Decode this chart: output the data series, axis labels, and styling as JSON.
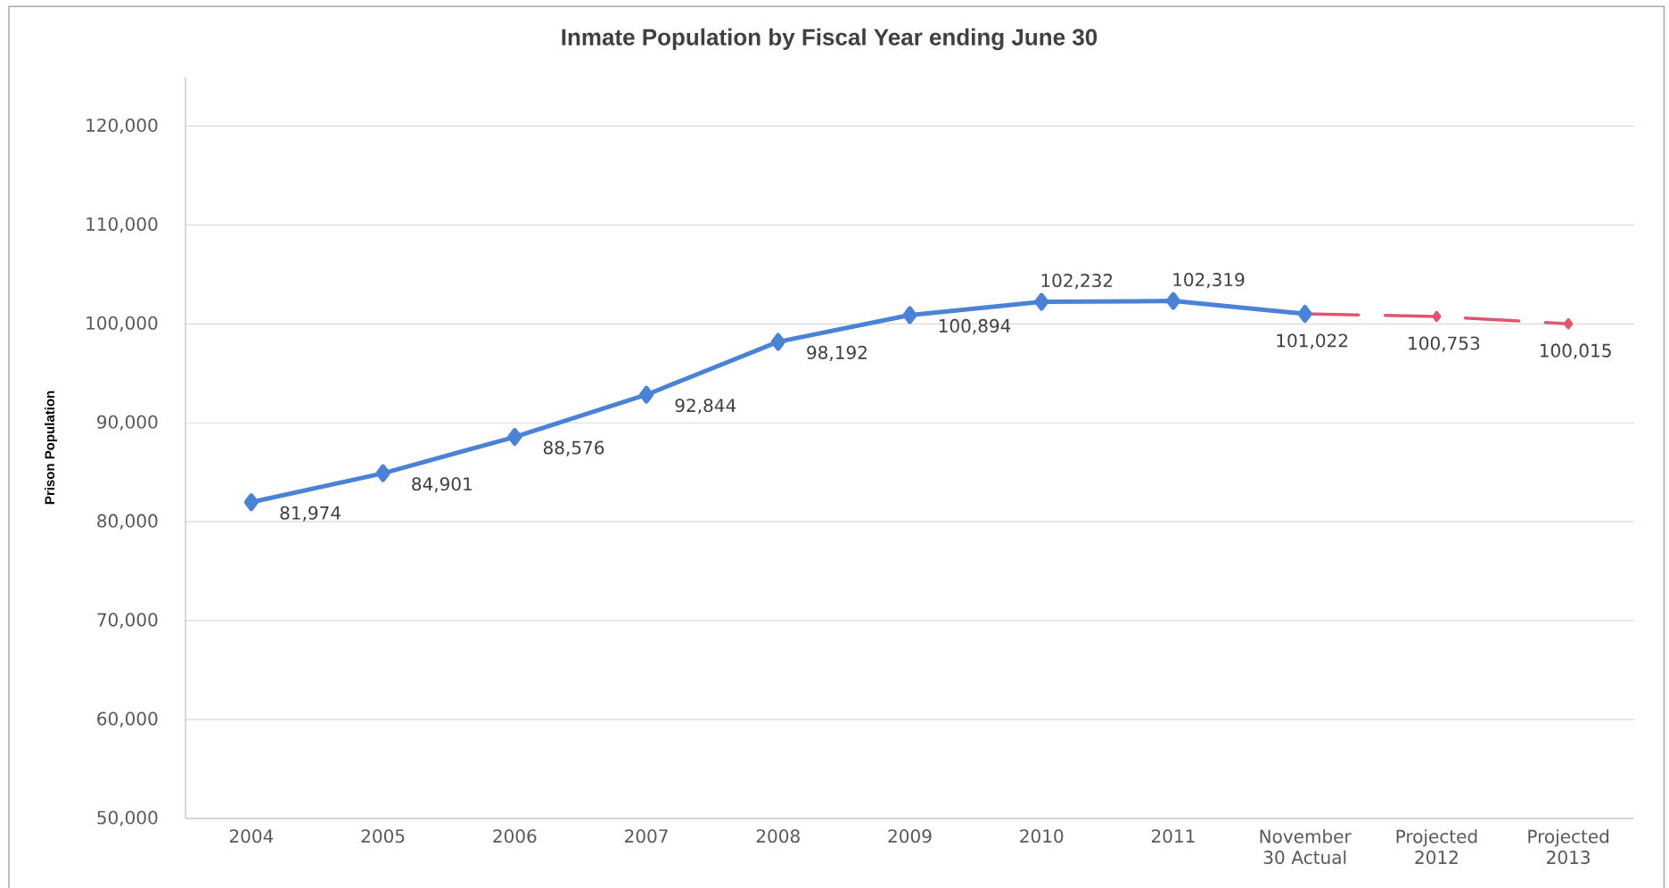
{
  "chart_data": {
    "type": "line",
    "title": "Inmate Population by Fiscal Year ending June 30",
    "ylabel": "Prison Population",
    "categories": [
      "2004",
      "2005",
      "2006",
      "2007",
      "2008",
      "2009",
      "2010",
      "2011",
      "November 30 Actual",
      "Projected 2012",
      "Projected 2013"
    ],
    "series": [
      {
        "color": "#4a82d6",
        "line_style": "solid",
        "values": [
          81974,
          84901,
          88576,
          92844,
          98192,
          100894,
          102232,
          102319,
          101022,
          null,
          null
        ],
        "value_labels": [
          "81,974",
          "84,901",
          "88,576",
          "92,844",
          "98,192",
          "100,894",
          "102,232",
          "102,319",
          "101,022",
          null,
          null
        ]
      },
      {
        "color": "#e0566e",
        "line_style": "dashed",
        "values": [
          null,
          null,
          null,
          null,
          null,
          null,
          null,
          null,
          101022,
          100753,
          100015
        ],
        "value_labels": [
          null,
          null,
          null,
          null,
          null,
          null,
          null,
          null,
          null,
          "100,753",
          "100,015"
        ]
      }
    ],
    "ylim": [
      50000,
      125000
    ],
    "yticks": [
      {
        "value": 50000,
        "label": "50,000"
      },
      {
        "value": 60000,
        "label": "60,000"
      },
      {
        "value": 70000,
        "label": "70,000"
      },
      {
        "value": 80000,
        "label": "80,000"
      },
      {
        "value": 90000,
        "label": "90,000"
      },
      {
        "value": 100000,
        "label": "100,000"
      },
      {
        "value": 110000,
        "label": "110,000"
      },
      {
        "value": 120000,
        "label": "120,000"
      }
    ],
    "grid": "y",
    "marker": "diamond"
  }
}
